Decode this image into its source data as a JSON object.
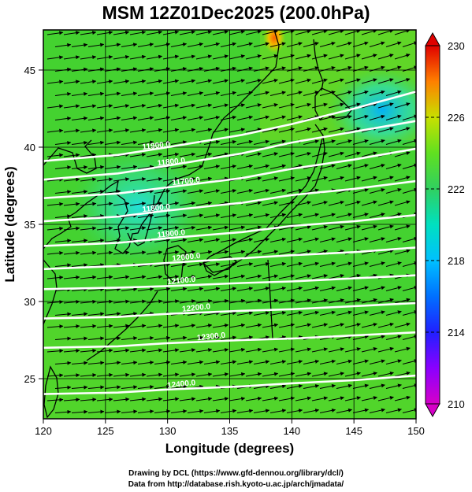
{
  "chart_data": {
    "type": "heatmap",
    "title": "MSM 12Z01Dec2025 (200.0hPa)",
    "xlabel": "Longitude (degrees)",
    "ylabel": "Latitude  (degrees)",
    "xlim": [
      120,
      150
    ],
    "ylim": [
      22.4,
      47.6
    ],
    "x_ticks": [
      "120",
      "125",
      "130",
      "135",
      "140",
      "145",
      "150"
    ],
    "y_ticks": [
      "25",
      "30",
      "35",
      "40",
      "45"
    ],
    "colorbar": {
      "range": [
        210,
        230
      ],
      "tick_labels": [
        "230",
        "226",
        "222",
        "218",
        "214",
        "210"
      ],
      "colors": [
        "#d600c8",
        "#8a00ff",
        "#2020ff",
        "#00a0ff",
        "#00e0d0",
        "#30d070",
        "#44dd22",
        "#b8e000",
        "#f0c000",
        "#ff6000",
        "#e00000"
      ]
    },
    "contours": [
      {
        "label": "11900.0",
        "lon": [
          120,
          126,
          130,
          136,
          140,
          145,
          150
        ],
        "lat": [
          39.1,
          39.5,
          40.0,
          40.8,
          41.5,
          42.5,
          43.6
        ]
      },
      {
        "label": "11800.0",
        "lon": [
          120,
          126,
          130,
          136,
          140,
          145,
          150
        ],
        "lat": [
          37.9,
          38.3,
          38.8,
          39.6,
          40.3,
          41.0,
          41.7
        ]
      },
      {
        "label": "11700.0",
        "lon": [
          120,
          126,
          130,
          136,
          140,
          145,
          150
        ],
        "lat": [
          36.7,
          37.0,
          37.4,
          38.0,
          38.6,
          39.2,
          39.9
        ]
      },
      {
        "label": "11800.0",
        "lon": [
          120,
          126,
          130,
          136,
          140,
          145,
          150
        ],
        "lat": [
          35.2,
          35.5,
          35.9,
          36.4,
          36.9,
          37.3,
          37.8
        ]
      },
      {
        "label": "11900.0",
        "lon": [
          120,
          126,
          130,
          136,
          140,
          145,
          150
        ],
        "lat": [
          33.6,
          33.8,
          34.1,
          34.5,
          34.9,
          35.2,
          35.6
        ]
      },
      {
        "label": "12000.0",
        "lon": [
          120,
          126,
          130,
          136,
          140,
          145,
          150
        ],
        "lat": [
          32.1,
          32.3,
          32.5,
          32.8,
          33.0,
          33.2,
          33.5
        ]
      },
      {
        "label": "12100.0",
        "lon": [
          120,
          126,
          130,
          136,
          140,
          145,
          150
        ],
        "lat": [
          30.8,
          30.9,
          31.0,
          31.2,
          31.3,
          31.5,
          31.7
        ]
      },
      {
        "label": "12200.0",
        "lon": [
          120,
          126,
          130,
          136,
          140,
          145,
          150
        ],
        "lat": [
          28.9,
          29.0,
          29.2,
          29.4,
          29.5,
          29.7,
          29.9
        ]
      },
      {
        "label": "12300.0",
        "lon": [
          120,
          126,
          130,
          136,
          140,
          145,
          150
        ],
        "lat": [
          27.0,
          27.1,
          27.3,
          27.5,
          27.6,
          27.8,
          28.0
        ]
      },
      {
        "label": "12400.0",
        "lon": [
          120,
          126,
          130,
          136,
          140,
          145,
          150
        ],
        "lat": [
          24.0,
          24.1,
          24.3,
          24.5,
          24.7,
          24.9,
          25.2
        ]
      }
    ],
    "wind_direction": "west-southwest to east-northeast",
    "grid": true,
    "credits": [
      "Drawing by DCL (https://www.gfd-dennou.org/library/dcl/)",
      "Data from http://database.rish.kyoto-u.ac.jp/arch/jmadata/"
    ]
  }
}
